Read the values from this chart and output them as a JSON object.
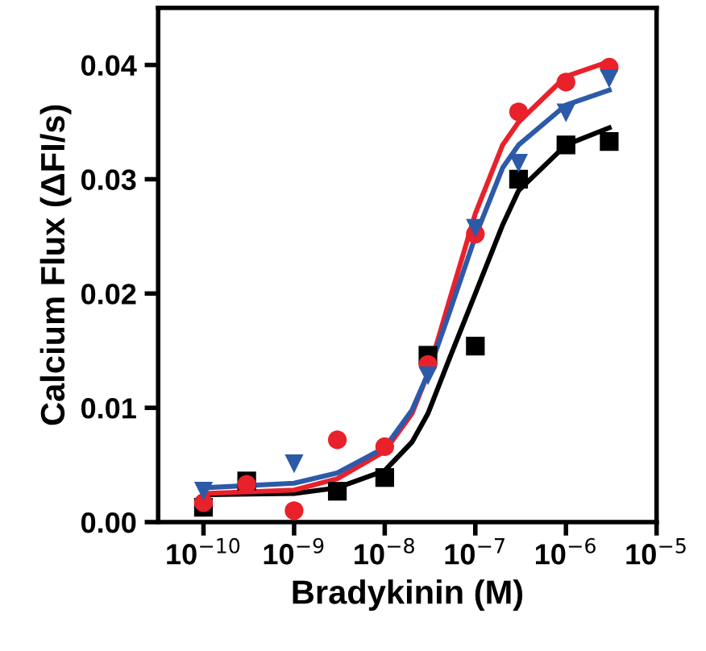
{
  "chart_data": {
    "type": "scatter",
    "xlabel": "Bradykinin (M)",
    "ylabel": "Calcium Flux (ΔFI/s)",
    "log": "x",
    "grid": false,
    "legend": false,
    "xlim": [
      3.16e-11,
      1e-05
    ],
    "xticks": [
      {
        "value": 1e-10,
        "label": "10$^{−10}$"
      },
      {
        "value": 1e-09,
        "label": "10$^{−9}$"
      },
      {
        "value": 1e-08,
        "label": "10$^{−8}$"
      },
      {
        "value": 1e-07,
        "label": "10$^{−7}$"
      },
      {
        "value": 1e-06,
        "label": "10$^{−6}$"
      },
      {
        "value": 1e-05,
        "label": "10$^{−5}$"
      }
    ],
    "ylim": [
      0,
      0.045
    ],
    "yticks": [
      {
        "value": 0,
        "label": "0.00"
      },
      {
        "value": 0.01,
        "label": "0.01"
      },
      {
        "value": 0.02,
        "label": "0.02"
      },
      {
        "value": 0.03,
        "label": "0.03"
      },
      {
        "value": 0.04,
        "label": "0.04"
      }
    ],
    "x": [
      1e-10,
      3e-10,
      1e-09,
      3e-09,
      1e-08,
      3e-08,
      1e-07,
      3e-07,
      1e-06,
      3e-06
    ],
    "series": [
      {
        "type": "line",
        "color": "#000000",
        "marker": "none",
        "x": [
          1e-10,
          1e-09,
          3e-09,
          1e-08,
          2e-08,
          3e-08,
          5e-08,
          1e-07,
          2e-07,
          3e-07,
          1e-06,
          3e-06
        ],
        "values": [
          0.0024,
          0.0025,
          0.003,
          0.0045,
          0.007,
          0.0095,
          0.014,
          0.02,
          0.026,
          0.029,
          0.033,
          0.0345
        ]
      },
      {
        "type": "line",
        "color": "#e8212b",
        "marker": "none",
        "x": [
          1e-10,
          1e-09,
          3e-09,
          1e-08,
          2e-08,
          3e-08,
          5e-08,
          1e-07,
          2e-07,
          3e-07,
          1e-06,
          3e-06
        ],
        "values": [
          0.0025,
          0.0028,
          0.0038,
          0.0062,
          0.0095,
          0.013,
          0.019,
          0.027,
          0.033,
          0.035,
          0.039,
          0.0403
        ]
      },
      {
        "type": "line",
        "color": "#2d5aa8",
        "marker": "none",
        "x": [
          1e-10,
          1e-09,
          3e-09,
          1e-08,
          2e-08,
          3e-08,
          5e-08,
          1e-07,
          2e-07,
          3e-07,
          1e-06,
          3e-06
        ],
        "values": [
          0.003,
          0.0034,
          0.0043,
          0.0065,
          0.0098,
          0.013,
          0.018,
          0.025,
          0.031,
          0.033,
          0.0365,
          0.0378
        ]
      },
      {
        "color": "#000000",
        "marker": "square",
        "values": [
          0.0013,
          0.0036,
          null,
          0.0027,
          0.0039,
          0.0146,
          0.0154,
          0.03,
          0.033,
          0.0333
        ]
      },
      {
        "color": "#e8212b",
        "marker": "circle",
        "values": [
          0.0017,
          0.0033,
          0.001,
          0.0072,
          0.0066,
          0.0138,
          0.0252,
          0.0359,
          0.0385,
          0.0398
        ]
      },
      {
        "color": "#2d5aa8",
        "marker": "triangle",
        "values": [
          0.0027,
          null,
          0.0051,
          null,
          null,
          0.0128,
          0.0257,
          0.0314,
          0.0358,
          0.0388
        ]
      }
    ]
  }
}
